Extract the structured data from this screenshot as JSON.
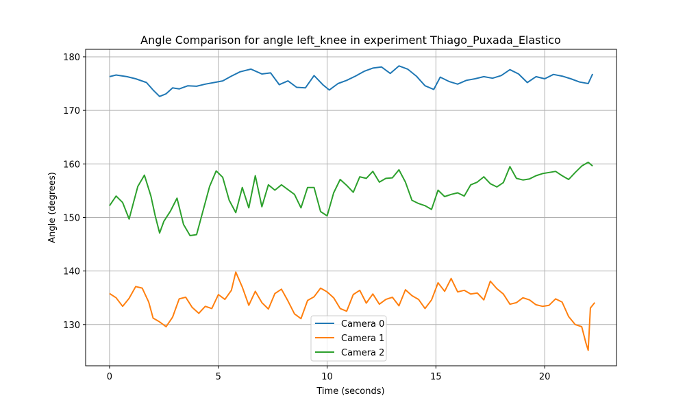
{
  "chart_data": {
    "type": "line",
    "title": "Angle Comparison for angle left_knee in experiment Thiago_Puxada_Elastico",
    "xlabel": "Time (seconds)",
    "ylabel": "Angle (degrees)",
    "xlim": [
      -1.1,
      23.3
    ],
    "ylim": [
      122.3,
      181.4
    ],
    "xticks": [
      0,
      5,
      10,
      15,
      20
    ],
    "yticks": [
      130,
      140,
      150,
      160,
      170,
      180
    ],
    "grid": true,
    "legend_position": "lower center",
    "series": [
      {
        "name": "Camera 0",
        "color": "#1f77b4",
        "x": [
          0.0,
          0.3,
          0.8,
          1.2,
          1.7,
          2.0,
          2.3,
          2.6,
          2.9,
          3.2,
          3.6,
          4.0,
          4.4,
          4.8,
          5.2,
          5.6,
          6.0,
          6.5,
          7.0,
          7.4,
          7.8,
          8.2,
          8.6,
          9.0,
          9.4,
          9.8,
          10.1,
          10.5,
          10.9,
          11.3,
          11.7,
          12.1,
          12.5,
          12.9,
          13.3,
          13.7,
          14.1,
          14.5,
          14.9,
          15.2,
          15.6,
          16.0,
          16.4,
          16.8,
          17.2,
          17.6,
          18.0,
          18.4,
          18.8,
          19.2,
          19.6,
          20.0,
          20.4,
          20.8,
          21.2,
          21.6,
          22.0,
          22.2
        ],
        "y": [
          176.3,
          176.6,
          176.3,
          175.9,
          175.2,
          173.8,
          172.6,
          173.1,
          174.2,
          174.0,
          174.6,
          174.5,
          174.9,
          175.2,
          175.5,
          176.4,
          177.2,
          177.7,
          176.8,
          177.0,
          174.8,
          175.5,
          174.3,
          174.2,
          176.5,
          174.8,
          173.8,
          175.0,
          175.6,
          176.4,
          177.3,
          177.9,
          178.1,
          176.9,
          178.3,
          177.7,
          176.4,
          174.6,
          173.9,
          176.2,
          175.4,
          174.9,
          175.6,
          175.9,
          176.3,
          176.0,
          176.5,
          177.6,
          176.8,
          175.2,
          176.3,
          175.9,
          176.7,
          176.4,
          175.9,
          175.3,
          175.0,
          176.8
        ]
      },
      {
        "name": "Camera 1",
        "color": "#ff7f0e",
        "x": [
          0.0,
          0.3,
          0.6,
          0.9,
          1.2,
          1.5,
          1.8,
          2.0,
          2.3,
          2.6,
          2.9,
          3.2,
          3.5,
          3.8,
          4.1,
          4.4,
          4.7,
          5.0,
          5.3,
          5.6,
          5.8,
          6.1,
          6.4,
          6.7,
          7.0,
          7.3,
          7.6,
          7.9,
          8.2,
          8.5,
          8.8,
          9.1,
          9.4,
          9.7,
          10.0,
          10.3,
          10.6,
          10.9,
          11.2,
          11.5,
          11.8,
          12.1,
          12.4,
          12.7,
          13.0,
          13.3,
          13.6,
          13.9,
          14.2,
          14.5,
          14.8,
          15.1,
          15.4,
          15.7,
          16.0,
          16.3,
          16.6,
          16.9,
          17.2,
          17.5,
          17.8,
          18.1,
          18.4,
          18.7,
          19.0,
          19.3,
          19.6,
          19.9,
          20.2,
          20.5,
          20.8,
          21.1,
          21.4,
          21.7,
          21.9,
          22.0,
          22.1,
          22.3
        ],
        "y": [
          135.8,
          135.0,
          133.4,
          134.9,
          137.1,
          136.8,
          134.2,
          131.2,
          130.5,
          129.6,
          131.4,
          134.8,
          135.1,
          133.2,
          132.1,
          133.4,
          133.0,
          135.6,
          134.7,
          136.4,
          139.8,
          137.0,
          133.6,
          136.2,
          134.1,
          132.9,
          135.8,
          136.6,
          134.4,
          132.0,
          131.1,
          134.5,
          135.2,
          136.8,
          136.1,
          135.0,
          133.0,
          132.5,
          135.6,
          136.4,
          134.0,
          135.7,
          133.8,
          134.7,
          135.1,
          133.5,
          136.5,
          135.4,
          134.7,
          133.0,
          134.6,
          137.8,
          136.2,
          138.6,
          136.1,
          136.4,
          135.7,
          135.9,
          134.6,
          138.1,
          136.7,
          135.7,
          133.8,
          134.1,
          135.0,
          134.6,
          133.7,
          133.4,
          133.6,
          134.8,
          134.2,
          131.5,
          130.0,
          129.6,
          126.5,
          125.2,
          133.1,
          134.1
        ]
      },
      {
        "name": "Camera 2",
        "color": "#2ca02c",
        "x": [
          0.0,
          0.3,
          0.6,
          0.9,
          1.1,
          1.3,
          1.6,
          1.9,
          2.1,
          2.3,
          2.5,
          2.8,
          3.1,
          3.4,
          3.7,
          4.0,
          4.3,
          4.6,
          4.9,
          5.2,
          5.5,
          5.8,
          6.1,
          6.4,
          6.7,
          7.0,
          7.3,
          7.6,
          7.9,
          8.2,
          8.5,
          8.8,
          9.1,
          9.4,
          9.7,
          10.0,
          10.3,
          10.6,
          10.9,
          11.2,
          11.5,
          11.8,
          12.1,
          12.4,
          12.7,
          13.0,
          13.3,
          13.6,
          13.9,
          14.2,
          14.5,
          14.8,
          15.1,
          15.4,
          15.7,
          16.0,
          16.3,
          16.6,
          16.9,
          17.2,
          17.5,
          17.8,
          18.1,
          18.4,
          18.7,
          19.0,
          19.3,
          19.6,
          19.9,
          20.2,
          20.5,
          20.8,
          21.1,
          21.4,
          21.7,
          22.0,
          22.2
        ],
        "y": [
          152.2,
          154.0,
          152.8,
          149.7,
          152.8,
          155.8,
          157.9,
          154.0,
          150.3,
          147.1,
          149.3,
          151.2,
          153.6,
          148.7,
          146.6,
          146.8,
          151.3,
          155.8,
          158.7,
          157.5,
          153.2,
          150.9,
          155.6,
          151.8,
          157.8,
          152.0,
          156.1,
          155.1,
          156.1,
          155.2,
          154.3,
          151.8,
          155.6,
          155.6,
          151.1,
          150.3,
          154.6,
          157.1,
          156.0,
          154.7,
          157.6,
          157.3,
          158.6,
          156.6,
          157.3,
          157.4,
          158.9,
          156.6,
          153.2,
          152.6,
          152.2,
          151.5,
          155.1,
          153.9,
          154.3,
          154.6,
          154.0,
          156.1,
          156.6,
          157.6,
          156.3,
          155.7,
          156.5,
          159.5,
          157.3,
          157.0,
          157.2,
          157.8,
          158.2,
          158.4,
          158.6,
          157.8,
          157.1,
          158.4,
          159.6,
          160.3,
          159.6
        ]
      }
    ]
  }
}
